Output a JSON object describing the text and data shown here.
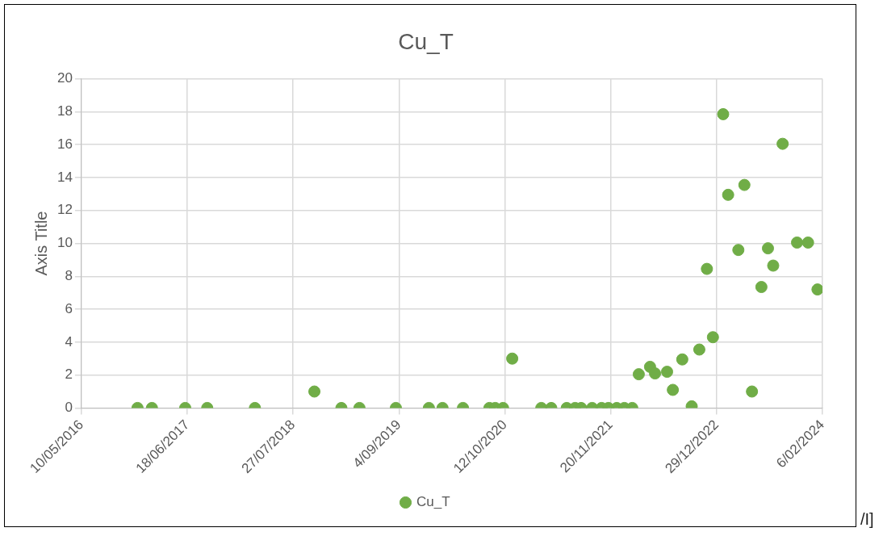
{
  "chart_data": {
    "type": "scatter",
    "title": "Cu_T",
    "ylabel": "Axis Title",
    "legend": "bottom",
    "grid": true,
    "marker": "circle",
    "xlim": [
      "2016-05-10",
      "2024-02-06"
    ],
    "xticks": [
      {
        "value": "2016-05-10",
        "label": "10/05/2016"
      },
      {
        "value": "2017-06-18",
        "label": "18/06/2017"
      },
      {
        "value": "2018-07-27",
        "label": "27/07/2018"
      },
      {
        "value": "2019-09-04",
        "label": "4/09/2019"
      },
      {
        "value": "2020-10-12",
        "label": "12/10/2020"
      },
      {
        "value": "2021-11-20",
        "label": "20/11/2021"
      },
      {
        "value": "2022-12-29",
        "label": "29/12/2022"
      },
      {
        "value": "2024-02-06",
        "label": "6/02/2024"
      }
    ],
    "ylim": [
      0,
      20
    ],
    "yticks": [
      0,
      2,
      4,
      6,
      8,
      10,
      12,
      14,
      16,
      18,
      20
    ],
    "x": [
      "2016-12-10",
      "2017-02-03",
      "2017-06-10",
      "2017-09-02",
      "2018-03-03",
      "2018-10-16",
      "2019-01-27",
      "2019-04-06",
      "2019-08-23",
      "2019-12-27",
      "2020-02-17",
      "2020-05-05",
      "2020-08-14",
      "2020-09-05",
      "2020-10-05",
      "2020-11-09",
      "2021-02-28",
      "2021-04-07",
      "2021-06-05",
      "2021-07-07",
      "2021-07-30",
      "2021-09-10",
      "2021-10-16",
      "2021-11-11",
      "2021-12-13",
      "2022-01-11",
      "2022-02-10",
      "2022-03-07",
      "2022-04-19",
      "2022-05-08",
      "2022-06-23",
      "2022-07-15",
      "2022-08-20",
      "2022-09-25",
      "2022-10-24",
      "2022-11-22",
      "2022-12-15",
      "2023-01-23",
      "2023-02-11",
      "2023-03-22",
      "2023-04-14",
      "2023-05-13",
      "2023-06-18",
      "2023-07-13",
      "2023-08-02",
      "2023-09-07",
      "2023-11-01",
      "2023-12-13",
      "2024-01-18"
    ],
    "series": [
      {
        "name": "Cu_T",
        "color": "#70ad47",
        "values": [
          0,
          0,
          0,
          0,
          0,
          1,
          0,
          0,
          0,
          0,
          0,
          0,
          0,
          0,
          0,
          3,
          0,
          0,
          0,
          0,
          0,
          0,
          0,
          0,
          0,
          0,
          0,
          2.05,
          2.5,
          2.1,
          2.2,
          1.1,
          2.95,
          0.1,
          3.55,
          8.45,
          4.3,
          17.85,
          12.95,
          9.6,
          13.55,
          1,
          7.35,
          9.7,
          8.65,
          16.05,
          10.05,
          10.05,
          7.2
        ]
      }
    ],
    "annotations": [
      "/I]"
    ]
  }
}
